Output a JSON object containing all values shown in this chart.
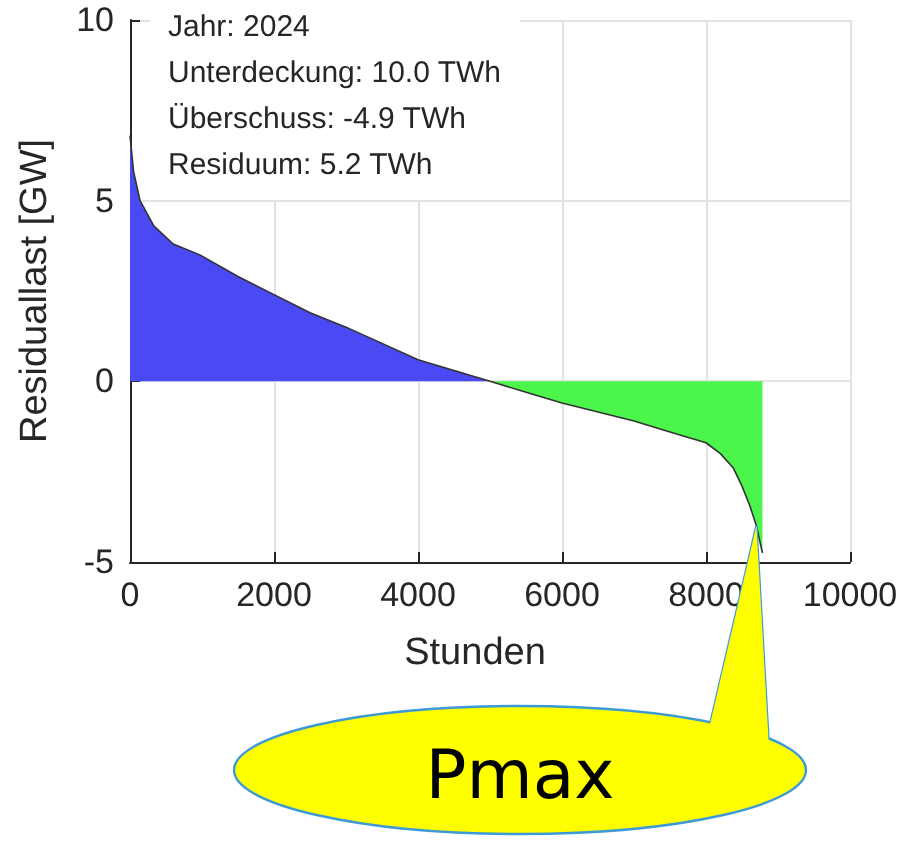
{
  "chart_data": {
    "type": "area",
    "xlabel": "Stunden",
    "ylabel": "Residuallast [GW]",
    "xlim": [
      0,
      10000
    ],
    "xticks": [
      0,
      2000,
      4000,
      6000,
      8000,
      10000
    ],
    "ylim": [
      -5,
      10
    ],
    "yticks": [
      -5,
      0,
      5,
      10
    ],
    "grid": true,
    "series": [
      {
        "color": "#4a4af5",
        "x": [
          0,
          50,
          140,
          330,
          600,
          970,
          1500,
          2000,
          2500,
          3000,
          3500,
          4000,
          4500,
          5000
        ],
        "values": [
          6.8,
          5.8,
          5.0,
          4.3,
          3.8,
          3.5,
          2.9,
          2.4,
          1.9,
          1.5,
          1.05,
          0.6,
          0.3,
          0
        ]
      },
      {
        "color": "#4cf54c",
        "x": [
          5000,
          5500,
          6000,
          6500,
          7000,
          7500,
          8000,
          8200,
          8380,
          8500,
          8610,
          8700,
          8784
        ],
        "values": [
          0,
          -0.3,
          -0.6,
          -0.85,
          -1.1,
          -1.4,
          -1.7,
          -2.0,
          -2.4,
          -2.9,
          -3.45,
          -4.0,
          -4.75
        ]
      }
    ],
    "annotations": [
      "Jahr: 2024",
      "Unterdeckung: 10.0 TWh",
      "Überschuss: -4.9 TWh",
      "Residuum: 5.2 TWh",
      "Pmax"
    ]
  }
}
